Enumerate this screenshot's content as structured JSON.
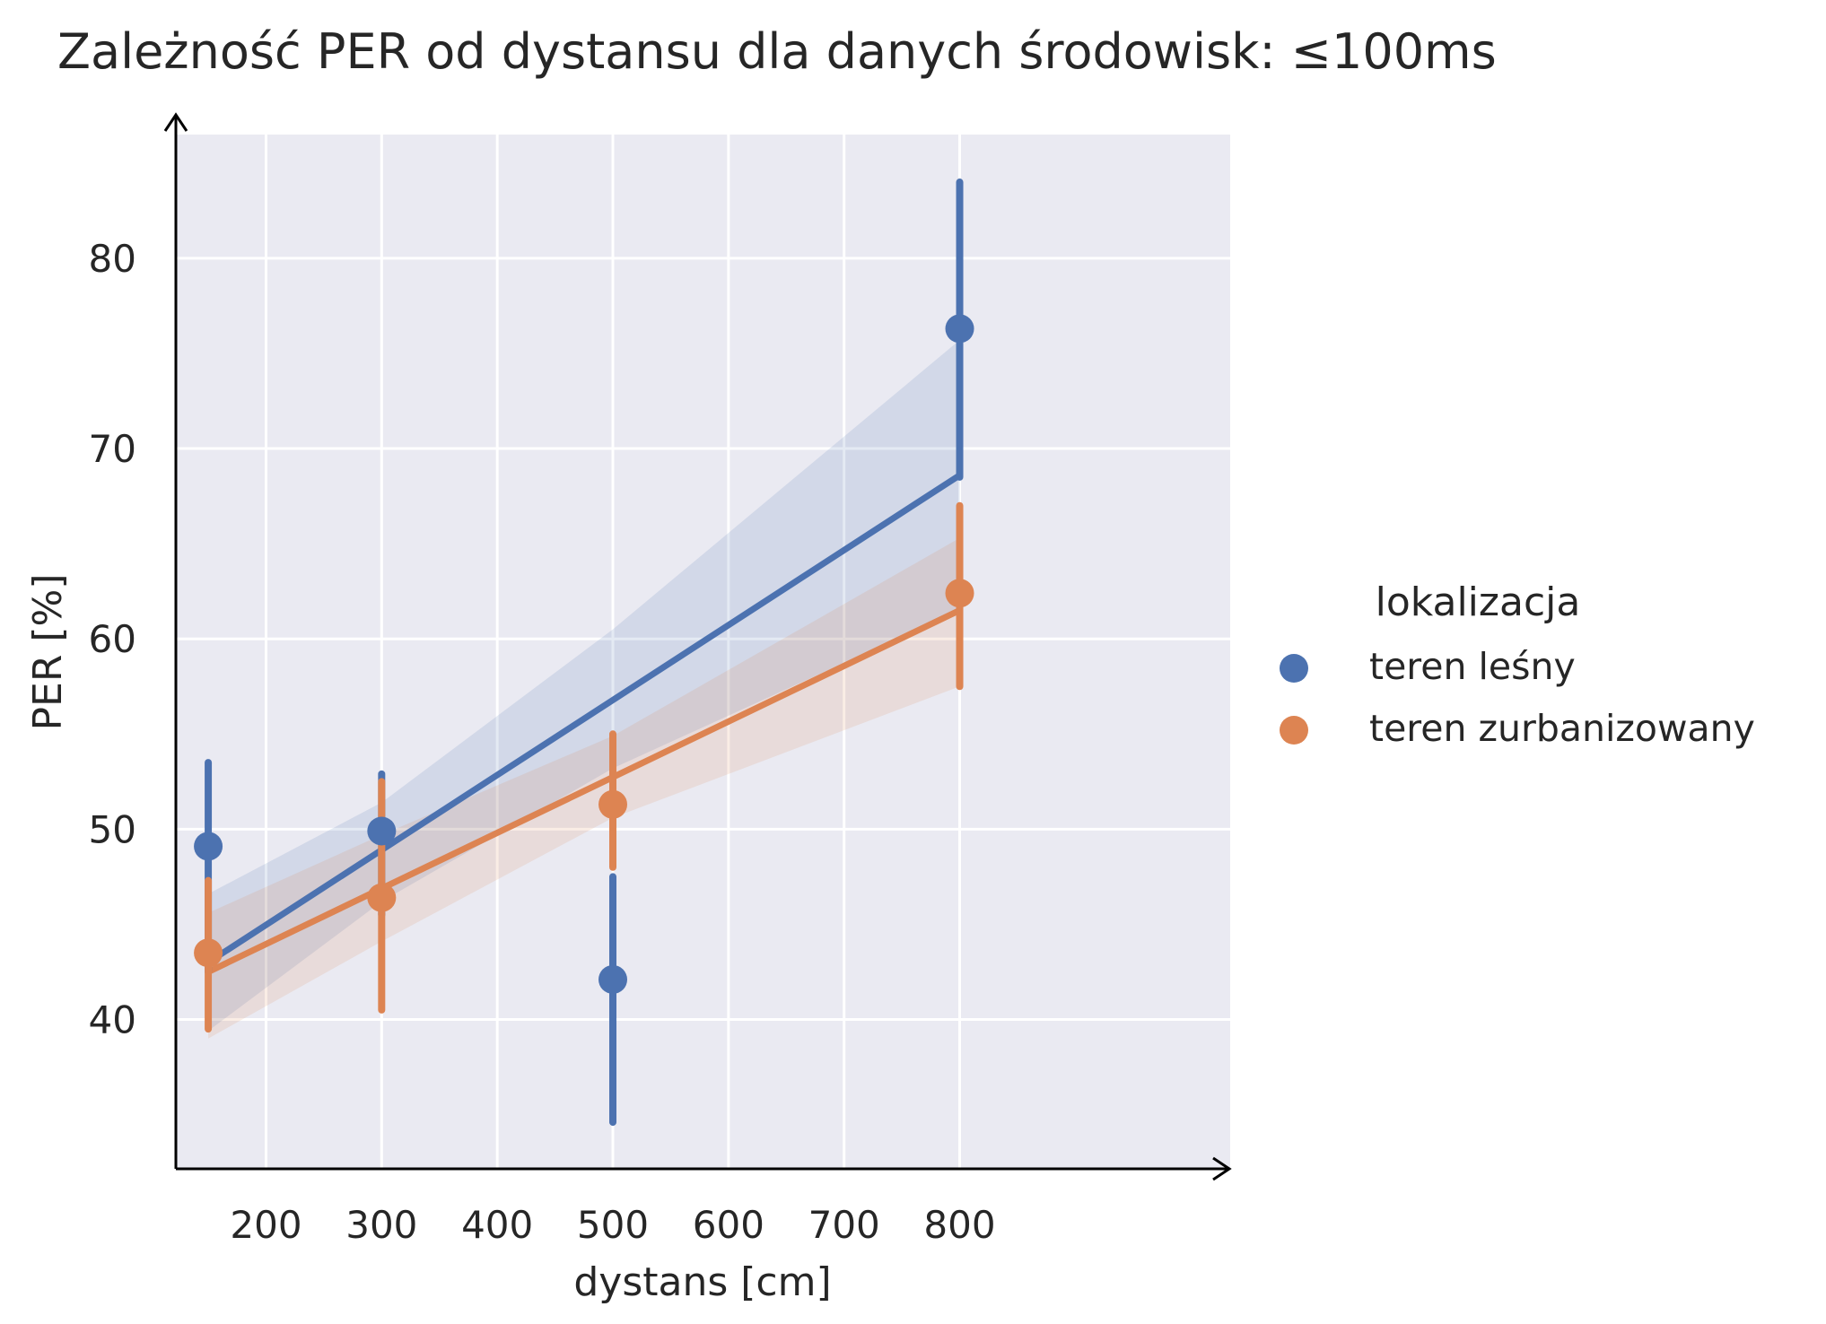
{
  "chart_data": {
    "type": "scatter",
    "title": "Zależność PER od dystansu dla danych środowisk: ≤100ms",
    "xlabel": "dystans [cm]",
    "ylabel": "PER [%]",
    "xlim": [
      122,
      1034
    ],
    "ylim": [
      32.2,
      86.5
    ],
    "xticks": [
      200,
      300,
      400,
      500,
      600,
      700,
      800
    ],
    "yticks": [
      40,
      50,
      60,
      70,
      80
    ],
    "grid": true,
    "legend": {
      "title": "lokalizacja",
      "position": "right"
    },
    "series": [
      {
        "name": "teren leśny",
        "color": "#4c72b0",
        "points": [
          {
            "x": 150,
            "y": 49.1,
            "err_low": 42.5,
            "err_high": 53.5
          },
          {
            "x": 300,
            "y": 49.9,
            "err_low": 45.5,
            "err_high": 52.9
          },
          {
            "x": 500,
            "y": 42.1,
            "err_low": 34.6,
            "err_high": 47.5
          },
          {
            "x": 800,
            "y": 76.3,
            "err_low": 68.5,
            "err_high": 84.0
          }
        ],
        "trend": {
          "x": [
            150,
            800
          ],
          "y": [
            43.0,
            68.6
          ]
        },
        "ci_band": [
          {
            "x": 150,
            "low": 39.4,
            "high": 46.6
          },
          {
            "x": 300,
            "low": 46.2,
            "high": 51.4
          },
          {
            "x": 500,
            "low": 53.2,
            "high": 60.5
          },
          {
            "x": 800,
            "low": 61.5,
            "high": 75.7
          }
        ]
      },
      {
        "name": "teren zurbanizowany",
        "color": "#dd8452",
        "points": [
          {
            "x": 150,
            "y": 43.5,
            "err_low": 39.5,
            "err_high": 47.3
          },
          {
            "x": 300,
            "y": 46.4,
            "err_low": 40.5,
            "err_high": 52.5
          },
          {
            "x": 500,
            "y": 51.3,
            "err_low": 48.0,
            "err_high": 55.0
          },
          {
            "x": 800,
            "y": 62.4,
            "err_low": 57.5,
            "err_high": 67.0
          }
        ],
        "trend": {
          "x": [
            150,
            800
          ],
          "y": [
            42.5,
            61.5
          ]
        },
        "ci_band": [
          {
            "x": 150,
            "low": 39.0,
            "high": 45.6
          },
          {
            "x": 300,
            "low": 44.1,
            "high": 49.7
          },
          {
            "x": 500,
            "low": 50.6,
            "high": 54.9
          },
          {
            "x": 800,
            "low": 57.5,
            "high": 65.3
          }
        ]
      }
    ]
  }
}
